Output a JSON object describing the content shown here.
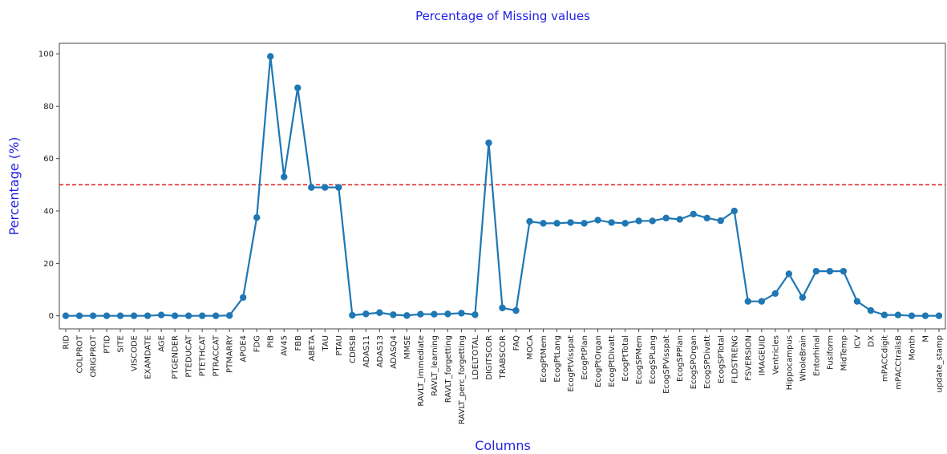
{
  "chart_data": {
    "type": "line",
    "title": "Percentage of Missing values",
    "xlabel": "Columns",
    "ylabel": "Percentage (%)",
    "categories": [
      "RID",
      "COLPROT",
      "ORIGPROT",
      "PTID",
      "SITE",
      "VISCODE",
      "EXAMDATE",
      "AGE",
      "PTGENDER",
      "PTEDUCAT",
      "PTETHCAT",
      "PTRACCAT",
      "PTMARRY",
      "APOE4",
      "FDG",
      "PIB",
      "AV45",
      "FBB",
      "ABETA",
      "TAU",
      "PTAU",
      "CDRSB",
      "ADAS11",
      "ADAS13",
      "ADASQ4",
      "MMSE",
      "RAVLT_immediate",
      "RAVLT_learning",
      "RAVLT_forgetting",
      "RAVLT_perc_forgetting",
      "LDELTOTAL",
      "DIGITSCOR",
      "TRABSCOR",
      "FAQ",
      "MOCA",
      "EcogPtMem",
      "EcogPtLang",
      "EcogPtVisspat",
      "EcogPtPlan",
      "EcogPtOrgan",
      "EcogPtDivatt",
      "EcogPtTotal",
      "EcogSPMem",
      "EcogSPLang",
      "EcogSPVisspat",
      "EcogSPPlan",
      "EcogSPOrgan",
      "EcogSPDivatt",
      "EcogSPTotal",
      "FLDSTRENG",
      "FSVERSION",
      "IMAGEUID",
      "Ventricles",
      "Hippocampus",
      "WholeBrain",
      "Entorhinal",
      "Fusiform",
      "MidTemp",
      "ICV",
      "DX",
      "mPACCdigit",
      "mPACCtrailsB",
      "Month",
      "M",
      "update_stamp"
    ],
    "series": [
      {
        "name": "Percentage",
        "color": "#1f77b4",
        "values": [
          0,
          0,
          0,
          0,
          0,
          0,
          0,
          0.3,
          0,
          0,
          0,
          0,
          0.1,
          7,
          37.5,
          99,
          53,
          87,
          49,
          49,
          49,
          0.2,
          0.7,
          1.2,
          0.4,
          0.1,
          0.6,
          0.6,
          0.7,
          1,
          0.4,
          66,
          3,
          2,
          36,
          35.3,
          35.3,
          35.6,
          35.3,
          36.5,
          35.6,
          35.3,
          36.2,
          36.2,
          37.3,
          36.8,
          38.8,
          37.3,
          36.3,
          40,
          5.5,
          5.5,
          8.5,
          16,
          7,
          17,
          17,
          17,
          5.5,
          2,
          0.3,
          0.3,
          0,
          0,
          0
        ]
      }
    ],
    "ylim": [
      -5,
      104
    ],
    "yticks": [
      0,
      20,
      40,
      60,
      80,
      100
    ],
    "threshold": {
      "value": 50,
      "color": "#e41a1c"
    },
    "grid": false
  }
}
